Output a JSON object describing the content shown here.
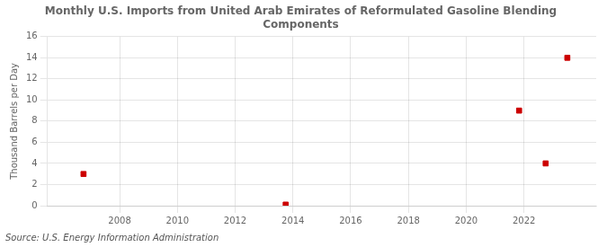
{
  "chart_data": {
    "type": "scatter",
    "title": "Monthly U.S. Imports from United Arab Emirates of Reformulated Gasoline Blending\nComponents",
    "ylabel": "Thousand Barrels per Day",
    "annotation": "Source: U.S. Energy Information Administration",
    "x": [
      2006.75,
      2013.75,
      2021.83,
      2022.75,
      2023.5
    ],
    "values": [
      3.0,
      0.1,
      9.0,
      4.0,
      14.0
    ],
    "color": "#cc0000",
    "marker": "square",
    "xlim": [
      2005.5,
      2024.5
    ],
    "ylim": [
      0,
      16
    ],
    "xticks": [
      2008,
      2010,
      2012,
      2014,
      2016,
      2018,
      2020,
      2022
    ],
    "yticks": [
      0,
      2,
      4,
      6,
      8,
      10,
      12,
      14,
      16
    ],
    "grid": true
  }
}
